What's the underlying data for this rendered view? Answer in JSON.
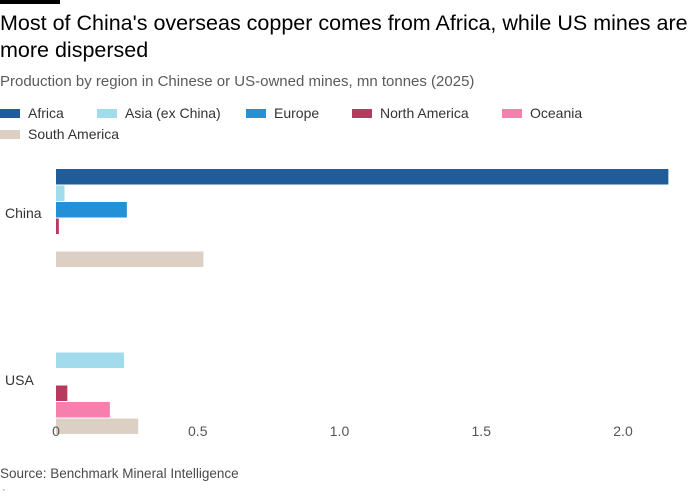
{
  "header": {
    "title": "Most of China's overseas copper comes from Africa, while US mines are more dispersed",
    "subtitle": "Production by region in Chinese or US-owned mines, mn tonnes (2025)"
  },
  "footer": {
    "source": "Source: Benchmark Mineral Intelligence",
    "corner_mark": "·"
  },
  "chart_data": {
    "type": "bar",
    "orientation": "horizontal",
    "title": "",
    "xlabel": "",
    "ylabel": "",
    "xlim": [
      0,
      2.2
    ],
    "x_ticks": [
      0,
      0.5,
      1.0,
      1.5,
      2.0
    ],
    "x_tick_labels": [
      "0",
      "0.5",
      "1.0",
      "1.5",
      "2.0"
    ],
    "grid": false,
    "legend_position": "top-left",
    "categories": [
      "China",
      "USA"
    ],
    "series": [
      {
        "name": "Africa",
        "color": "#1f5c99",
        "values": [
          2.16,
          0
        ]
      },
      {
        "name": "Asia (ex China)",
        "color": "#a2dcec",
        "values": [
          0.03,
          0.24
        ]
      },
      {
        "name": "Europe",
        "color": "#2490d6",
        "values": [
          0.25,
          0
        ]
      },
      {
        "name": "North America",
        "color": "#b8395f",
        "values": [
          0.01,
          0.04
        ]
      },
      {
        "name": "Oceania",
        "color": "#f77fad",
        "values": [
          0,
          0.19
        ]
      },
      {
        "name": "South America",
        "color": "#dcd0c5",
        "values": [
          0.52,
          0.29
        ]
      }
    ]
  }
}
